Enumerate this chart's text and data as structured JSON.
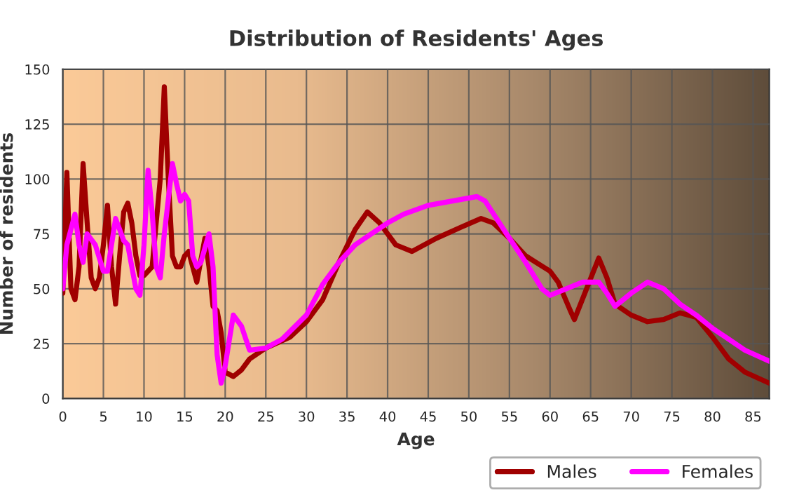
{
  "chart_data": {
    "type": "line",
    "title": "Distribution of Residents' Ages",
    "xlabel": "Age",
    "ylabel": "Number of residents",
    "xlim": [
      0,
      87
    ],
    "xticks": [
      0,
      5,
      10,
      15,
      20,
      25,
      30,
      35,
      40,
      45,
      50,
      55,
      60,
      65,
      70,
      75,
      80,
      85
    ],
    "ylim": [
      0,
      150
    ],
    "yticks": [
      0,
      25,
      50,
      75,
      100,
      125,
      150
    ],
    "grid": true,
    "legend": "bottom right",
    "marker": "none",
    "line_style": "solid",
    "series": [
      {
        "name": "Males",
        "color": "#a00000",
        "x": [
          0,
          0.5,
          1,
          1.5,
          2,
          2.5,
          3,
          3.5,
          4,
          4.5,
          5,
          5.5,
          6,
          6.5,
          7,
          7.5,
          8,
          8.5,
          9,
          9.5,
          10,
          11,
          12,
          12.5,
          13,
          13.5,
          14,
          14.5,
          15,
          15.5,
          16,
          16.5,
          17,
          17.5,
          18,
          18.5,
          19,
          19.5,
          20,
          21,
          22,
          23,
          25,
          28,
          30,
          32,
          34,
          36,
          37.5,
          39,
          41,
          43,
          46,
          49,
          51.5,
          53,
          55,
          57,
          60,
          61,
          62.5,
          63,
          64.5,
          66,
          67,
          68,
          70,
          72,
          74,
          76,
          78,
          80,
          82,
          84,
          87
        ],
        "values": [
          48,
          103,
          50,
          45,
          60,
          107,
          80,
          55,
          50,
          55,
          70,
          88,
          60,
          43,
          65,
          85,
          89,
          80,
          65,
          56,
          56,
          60,
          100,
          142,
          100,
          65,
          60,
          60,
          65,
          67,
          60,
          53,
          63,
          73,
          60,
          42,
          40,
          30,
          12,
          10,
          13,
          18,
          23,
          28,
          35,
          45,
          62,
          77,
          85,
          80,
          70,
          67,
          73,
          78,
          82,
          80,
          73,
          65,
          58,
          53,
          40,
          36,
          50,
          64,
          55,
          43,
          38,
          35,
          36,
          39,
          37,
          28,
          18,
          12,
          7
        ]
      },
      {
        "name": "Females",
        "color": "#ff00ff",
        "x": [
          0,
          0.5,
          1.5,
          2,
          2.5,
          3,
          4,
          5,
          5.5,
          6.5,
          7.5,
          8,
          9,
          9.5,
          10,
          10.5,
          11,
          11.5,
          12,
          12.5,
          13.5,
          14,
          14.5,
          15,
          15.5,
          16,
          16.5,
          17,
          18,
          18.5,
          19,
          19.5,
          20,
          21,
          22,
          23,
          25,
          27,
          30,
          32,
          34,
          36,
          38,
          40,
          42,
          45,
          48,
          51,
          52,
          55,
          57,
          59,
          60,
          62,
          64,
          66,
          67,
          68,
          70,
          72,
          74,
          76,
          78,
          80,
          82,
          84,
          87
        ],
        "values": [
          50,
          70,
          84,
          70,
          62,
          75,
          70,
          58,
          58,
          82,
          72,
          70,
          50,
          47,
          70,
          104,
          85,
          60,
          55,
          75,
          107,
          98,
          90,
          93,
          90,
          65,
          60,
          62,
          75,
          60,
          20,
          7,
          15,
          38,
          33,
          22,
          23,
          27,
          38,
          52,
          62,
          70,
          75,
          80,
          84,
          88,
          90,
          92,
          90,
          73,
          62,
          50,
          47,
          50,
          53,
          53,
          48,
          42,
          48,
          53,
          50,
          43,
          38,
          32,
          27,
          22,
          17
        ]
      }
    ]
  }
}
